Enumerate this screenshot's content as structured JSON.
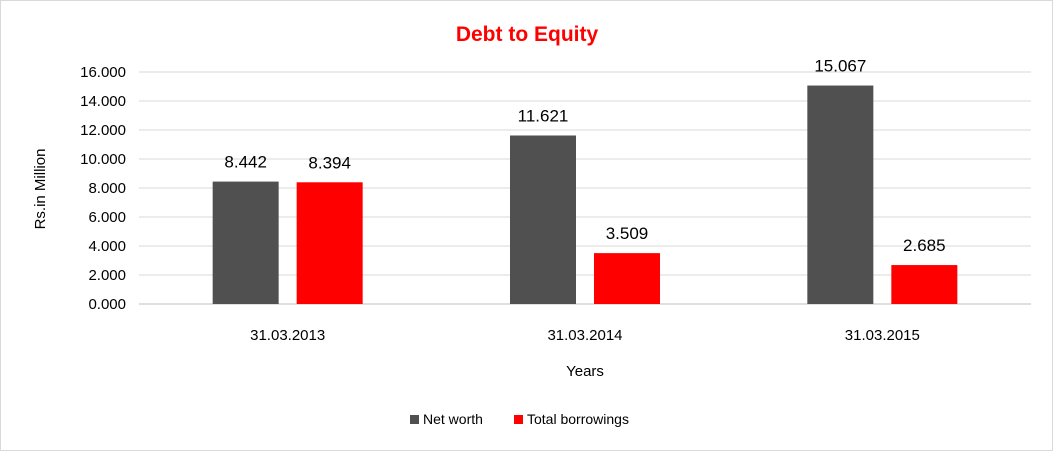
{
  "chart_data": {
    "type": "bar",
    "title": "Debt to Equity",
    "xlabel": "Years",
    "ylabel": "Rs.in Million",
    "categories": [
      "31.03.2013",
      "31.03.2014",
      "31.03.2015"
    ],
    "series": [
      {
        "name": "Net worth",
        "values": [
          8.442,
          11.621,
          15.067
        ],
        "value_labels": [
          "8.442",
          "11.621",
          "15.067"
        ],
        "color": "#505050"
      },
      {
        "name": "Total borrowings",
        "values": [
          8.394,
          3.509,
          2.685
        ],
        "value_labels": [
          "8.394",
          "3.509",
          "2.685"
        ],
        "color": "#ff0000"
      }
    ],
    "ylim": [
      0,
      16
    ],
    "yticks": [
      0,
      2,
      4,
      6,
      8,
      10,
      12,
      14,
      16
    ],
    "ytick_labels": [
      "0.000",
      "2.000",
      "4.000",
      "6.000",
      "8.000",
      "10.000",
      "12.000",
      "14.000",
      "16.000"
    ],
    "grid": true,
    "legend_position": "bottom",
    "title_color": "#ff0000"
  }
}
